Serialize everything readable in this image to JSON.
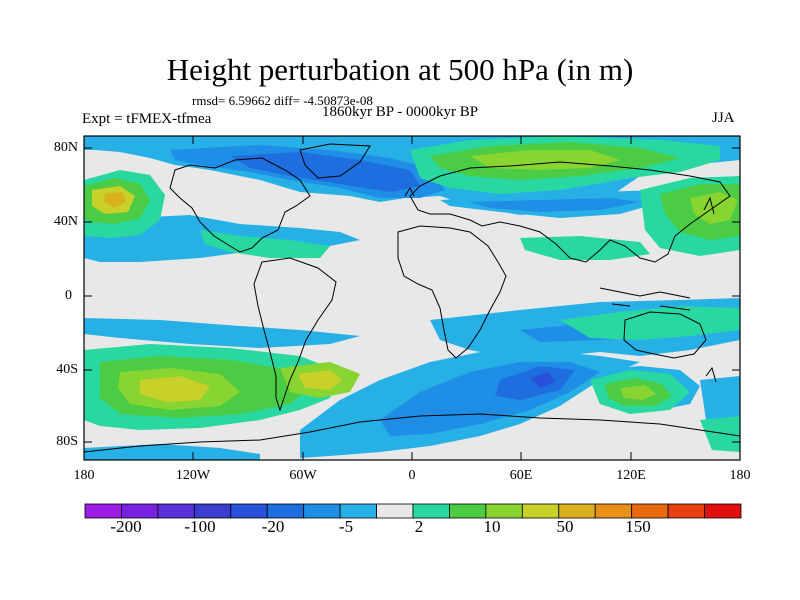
{
  "title": "Height perturbation at 500 hPa (in m)",
  "stats": "rmsd= 6.59662  diff= -4.50873e-08",
  "left_label": "Expt = tFMEX-tfmea",
  "center_label": "1860kyr BP - 0000kyr BP",
  "right_label": "JJA",
  "lat_ticks": [
    "80N",
    "40N",
    "0",
    "40S",
    "80S"
  ],
  "lon_ticks": [
    "180",
    "120W",
    "60W",
    "0",
    "60E",
    "120E",
    "180"
  ],
  "colorbar": {
    "colors": [
      "#9a1ee6",
      "#7a22e0",
      "#5a30d8",
      "#3c3ccf",
      "#2850d8",
      "#1e6ee0",
      "#1f8ee6",
      "#27b0e6",
      "#e8e8e8",
      "#28d8a0",
      "#4ccc44",
      "#88d430",
      "#c8d02a",
      "#d8b020",
      "#e89018",
      "#e86a10",
      "#e84010",
      "#e01010"
    ],
    "labels": [
      "-200",
      "-100",
      "-20",
      "-5",
      "2",
      "10",
      "50",
      "150"
    ]
  }
}
